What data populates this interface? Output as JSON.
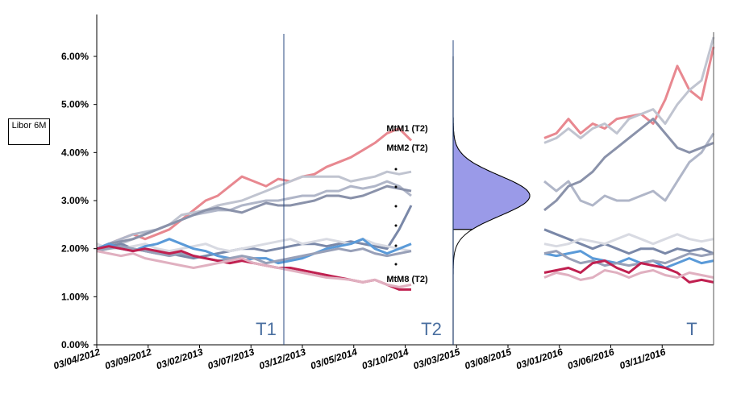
{
  "chart_data": {
    "type": "line",
    "ylabel": "Libor 6M",
    "yticks": [
      "0.00%",
      "1.00%",
      "2.00%",
      "3.00%",
      "4.00%",
      "5.00%",
      "6.00%"
    ],
    "ylim": [
      0,
      6.5
    ],
    "xticks": [
      "03/04/2012",
      "03/09/2012",
      "03/02/2013",
      "03/07/2013",
      "03/12/2013",
      "03/05/2014",
      "03/10/2014",
      "03/03/2015",
      "03/08/2015",
      "03/01/2016",
      "03/06/2016",
      "03/11/2016"
    ],
    "period_labels": [
      "T1",
      "T2",
      "T"
    ],
    "annotations": [
      "MtM1 (T2)",
      "MtM2 (T2)",
      "MtM8 (T2)"
    ],
    "gap_range": [
      8.0,
      9.8
    ],
    "distribution": {
      "mean": 3.1,
      "std": 0.42,
      "shaded_above": 2.4
    },
    "series": [
      {
        "color": "#e88890",
        "values": [
          2.0,
          2.1,
          2.2,
          2.3,
          2.2,
          2.3,
          2.4,
          2.6,
          2.8,
          3.0,
          3.1,
          3.3,
          3.5,
          3.4,
          3.3,
          3.45,
          3.4,
          3.5,
          3.55,
          3.7,
          3.8,
          3.9,
          4.05,
          4.2,
          4.4,
          4.5,
          4.25,
          null,
          null,
          null,
          null,
          null,
          null,
          null,
          null,
          null,
          null,
          4.3,
          4.4,
          4.7,
          4.4,
          4.6,
          4.5,
          4.7,
          4.75,
          4.8,
          4.6,
          5.1,
          5.8,
          5.3,
          5.1,
          6.2
        ]
      },
      {
        "color": "#c0c4d0",
        "values": [
          1.95,
          2.0,
          2.1,
          2.2,
          2.3,
          2.4,
          2.5,
          2.7,
          2.75,
          2.8,
          2.9,
          2.95,
          3.0,
          3.1,
          3.2,
          3.3,
          3.4,
          3.5,
          3.5,
          3.5,
          3.5,
          3.4,
          3.45,
          3.5,
          3.6,
          3.55,
          3.6,
          null,
          null,
          null,
          null,
          null,
          null,
          null,
          null,
          null,
          null,
          4.2,
          4.3,
          4.5,
          4.3,
          4.5,
          4.6,
          4.4,
          4.7,
          4.8,
          4.9,
          4.6,
          5.0,
          5.3,
          5.5,
          6.4
        ]
      },
      {
        "color": "#b0b6c8",
        "values": [
          2.0,
          2.1,
          2.2,
          2.3,
          2.35,
          2.4,
          2.5,
          2.6,
          2.7,
          2.75,
          2.8,
          2.8,
          2.9,
          2.95,
          3.0,
          3.0,
          3.05,
          3.1,
          3.1,
          3.2,
          3.2,
          3.3,
          3.25,
          3.3,
          3.4,
          3.3,
          3.1,
          null,
          null,
          null,
          null,
          null,
          null,
          null,
          null,
          null,
          null,
          3.4,
          3.2,
          3.4,
          3.0,
          2.9,
          3.1,
          3.0,
          3.0,
          3.1,
          3.2,
          3.0,
          3.4,
          3.8,
          4.0,
          4.4
        ]
      },
      {
        "color": "#8a92aa",
        "values": [
          2.0,
          2.1,
          2.15,
          2.2,
          2.3,
          2.4,
          2.5,
          2.6,
          2.7,
          2.8,
          2.85,
          2.8,
          2.75,
          2.85,
          2.95,
          2.9,
          2.9,
          2.95,
          3.0,
          3.1,
          3.1,
          3.05,
          3.1,
          3.2,
          3.3,
          3.25,
          3.2,
          null,
          null,
          null,
          null,
          null,
          null,
          null,
          null,
          null,
          null,
          2.8,
          3.0,
          3.3,
          3.4,
          3.6,
          3.9,
          4.1,
          4.3,
          4.5,
          4.7,
          4.4,
          4.1,
          4.0,
          4.1,
          4.2
        ]
      },
      {
        "color": "#7a88a8",
        "values": [
          2.0,
          2.05,
          2.1,
          2.0,
          1.95,
          1.9,
          1.9,
          1.85,
          1.8,
          1.85,
          1.9,
          1.95,
          2.0,
          2.0,
          1.95,
          2.0,
          2.05,
          2.1,
          2.1,
          2.05,
          2.1,
          2.15,
          2.1,
          2.05,
          2.0,
          2.4,
          2.9,
          null,
          null,
          null,
          null,
          null,
          null,
          null,
          null,
          null,
          null,
          2.4,
          2.3,
          2.2,
          2.1,
          2.0,
          2.1,
          2.0,
          1.9,
          2.0,
          2.0,
          1.9,
          2.0,
          1.95,
          2.0,
          1.9
        ]
      },
      {
        "color": "#d8dae2",
        "values": [
          2.1,
          2.0,
          2.0,
          2.05,
          2.1,
          2.0,
          1.95,
          2.0,
          2.05,
          2.1,
          2.0,
          1.95,
          2.0,
          2.05,
          2.1,
          2.15,
          2.2,
          2.1,
          2.15,
          2.2,
          2.15,
          2.1,
          2.2,
          2.1,
          2.05,
          2.0,
          1.95,
          null,
          null,
          null,
          null,
          null,
          null,
          null,
          null,
          null,
          null,
          2.1,
          2.05,
          2.1,
          2.2,
          2.15,
          2.1,
          2.2,
          2.3,
          2.2,
          2.1,
          2.2,
          2.3,
          2.2,
          2.15,
          2.2
        ]
      },
      {
        "color": "#5a9ad8",
        "values": [
          2.0,
          2.1,
          2.0,
          1.95,
          2.05,
          2.1,
          2.2,
          2.1,
          2.0,
          1.95,
          1.85,
          1.8,
          1.75,
          1.8,
          1.8,
          1.7,
          1.75,
          1.8,
          1.9,
          2.0,
          2.05,
          2.1,
          2.2,
          2.0,
          1.9,
          2.0,
          2.1,
          null,
          null,
          null,
          null,
          null,
          null,
          null,
          null,
          null,
          null,
          1.9,
          1.85,
          1.9,
          1.95,
          1.8,
          1.75,
          1.7,
          1.8,
          1.7,
          1.75,
          1.6,
          1.7,
          1.8,
          1.7,
          1.75
        ]
      },
      {
        "color": "#98a0b8",
        "values": [
          1.95,
          2.0,
          2.05,
          2.0,
          1.95,
          1.9,
          1.85,
          1.9,
          1.85,
          1.8,
          1.75,
          1.8,
          1.85,
          1.8,
          1.7,
          1.75,
          1.8,
          1.85,
          1.9,
          1.95,
          2.0,
          1.95,
          2.0,
          1.9,
          1.85,
          1.9,
          1.95,
          null,
          null,
          null,
          null,
          null,
          null,
          null,
          null,
          null,
          null,
          1.9,
          1.95,
          1.8,
          1.7,
          1.75,
          1.65,
          1.7,
          1.65,
          1.7,
          1.75,
          1.7,
          1.8,
          1.9,
          1.85,
          1.9
        ]
      },
      {
        "color": "#c02050",
        "values": [
          2.0,
          2.05,
          2.0,
          1.95,
          2.0,
          1.95,
          1.9,
          1.95,
          1.85,
          1.8,
          1.75,
          1.7,
          1.75,
          1.7,
          1.65,
          1.6,
          1.6,
          1.55,
          1.5,
          1.45,
          1.4,
          1.35,
          1.3,
          1.35,
          1.25,
          1.15,
          1.15,
          null,
          null,
          null,
          null,
          null,
          null,
          null,
          null,
          null,
          null,
          1.5,
          1.55,
          1.6,
          1.5,
          1.7,
          1.75,
          1.6,
          1.5,
          1.7,
          1.65,
          1.6,
          1.5,
          1.3,
          1.35,
          1.3
        ]
      },
      {
        "color": "#e0b0c0",
        "values": [
          1.95,
          1.9,
          1.85,
          1.9,
          1.8,
          1.75,
          1.7,
          1.65,
          1.6,
          1.65,
          1.7,
          1.75,
          1.8,
          1.7,
          1.65,
          1.6,
          1.55,
          1.5,
          1.45,
          1.4,
          1.38,
          1.35,
          1.3,
          1.35,
          1.25,
          1.2,
          1.25,
          null,
          null,
          null,
          null,
          null,
          null,
          null,
          null,
          null,
          null,
          1.4,
          1.5,
          1.45,
          1.35,
          1.4,
          1.55,
          1.5,
          1.4,
          1.5,
          1.55,
          1.45,
          1.4,
          1.5,
          1.45,
          1.4
        ]
      }
    ]
  }
}
